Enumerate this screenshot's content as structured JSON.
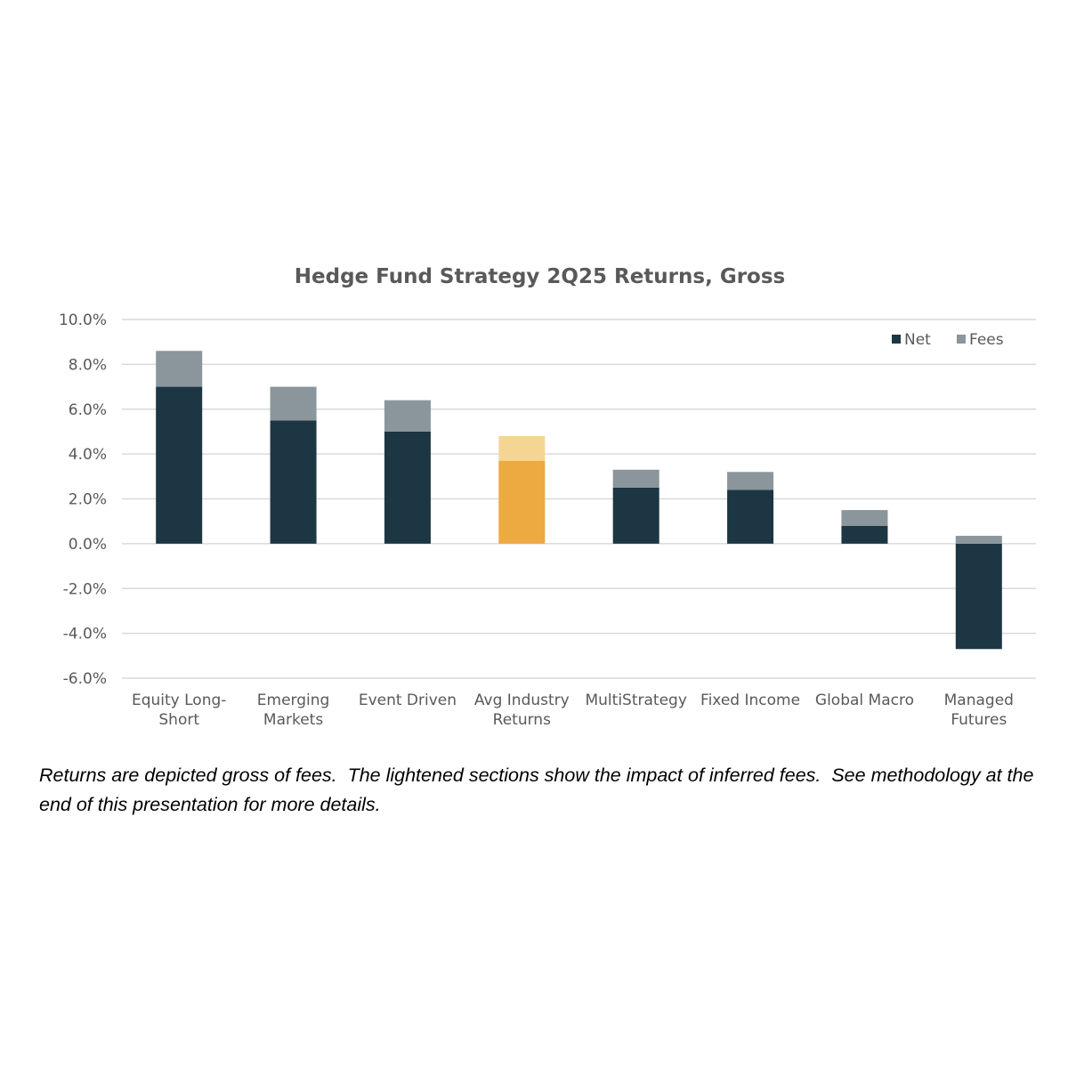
{
  "chart_data": {
    "type": "bar",
    "stacked": true,
    "title": "Hedge Fund Strategy 2Q25 Returns, Gross",
    "categories": [
      [
        "Equity Long-",
        "Short"
      ],
      [
        "Emerging",
        "Markets"
      ],
      [
        "Event Driven"
      ],
      [
        "Avg Industry",
        "Returns"
      ],
      [
        "MultiStrategy"
      ],
      [
        "Fixed Income"
      ],
      [
        "Global Macro"
      ],
      [
        "Managed",
        "Futures"
      ]
    ],
    "series": [
      {
        "name": "Net",
        "values": [
          7.0,
          5.5,
          5.0,
          3.7,
          2.5,
          2.4,
          0.8,
          -4.7
        ],
        "color": "#1c3644"
      },
      {
        "name": "Fees",
        "values": [
          1.6,
          1.5,
          1.4,
          1.1,
          0.8,
          0.8,
          0.7,
          0.35
        ],
        "color": "#8a969b"
      }
    ],
    "highlight": {
      "index": 3,
      "net_color": "#ecaa41",
      "fees_color": "#f5d594"
    },
    "ylim": [
      -6.0,
      10.0
    ],
    "yticks": [
      10.0,
      8.0,
      6.0,
      4.0,
      2.0,
      0.0,
      -2.0,
      -4.0,
      -6.0
    ],
    "ytick_labels": [
      "10.0%",
      "8.0%",
      "6.0%",
      "4.0%",
      "2.0%",
      "0.0%",
      "-2.0%",
      "-4.0%",
      "-6.0%"
    ],
    "grid": true,
    "legend_position": "top-right",
    "xlabel": "",
    "ylabel": ""
  },
  "caption": "Returns are depicted gross of fees.  The lightened sections show the impact of inferred fees.  See methodology at the end of this presentation for more details."
}
